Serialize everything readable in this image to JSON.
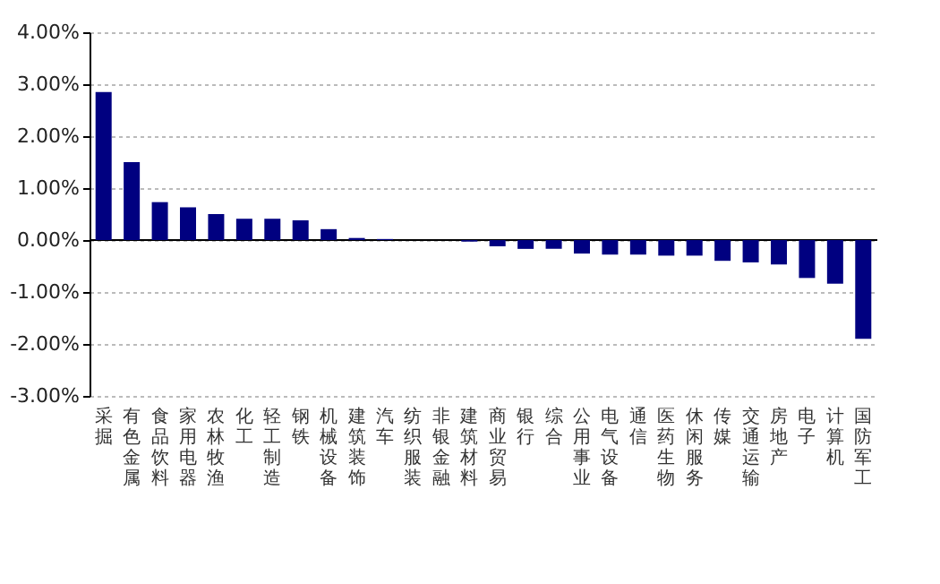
{
  "chart_data": {
    "type": "bar",
    "color": "#000080",
    "grid": "y",
    "categories": [
      "采掘",
      "有色金属",
      "食品饮料",
      "家用电器",
      "农林牧渔",
      "化工",
      "轻工制造",
      "钢铁",
      "机械设备",
      "建筑装饰",
      "汽车",
      "纺织服装",
      "非银金融",
      "建筑材料",
      "商业贸易",
      "银行",
      "综合",
      "公用事业",
      "电气设备",
      "通信",
      "医药生物",
      "休闲服务",
      "传媒",
      "交通运输",
      "房地产",
      "电子",
      "计算机",
      "国防军工"
    ],
    "values": [
      2.85,
      1.5,
      0.73,
      0.63,
      0.5,
      0.41,
      0.41,
      0.38,
      0.21,
      0.04,
      0.02,
      0.0,
      0.0,
      -0.03,
      -0.12,
      -0.17,
      -0.17,
      -0.26,
      -0.28,
      -0.28,
      -0.3,
      -0.3,
      -0.4,
      -0.43,
      -0.47,
      -0.73,
      -0.84,
      -1.9
    ],
    "ylim": [
      -3,
      4
    ],
    "yticks": [
      {
        "value": -3,
        "label": "-3.00%"
      },
      {
        "value": -2,
        "label": "-2.00%"
      },
      {
        "value": -1,
        "label": "-1.00%"
      },
      {
        "value": 0,
        "label": "0.00%"
      },
      {
        "value": 1,
        "label": "1.00%"
      },
      {
        "value": 2,
        "label": "2.00%"
      },
      {
        "value": 3,
        "label": "3.00%"
      },
      {
        "value": 4,
        "label": "4.00%"
      }
    ]
  }
}
